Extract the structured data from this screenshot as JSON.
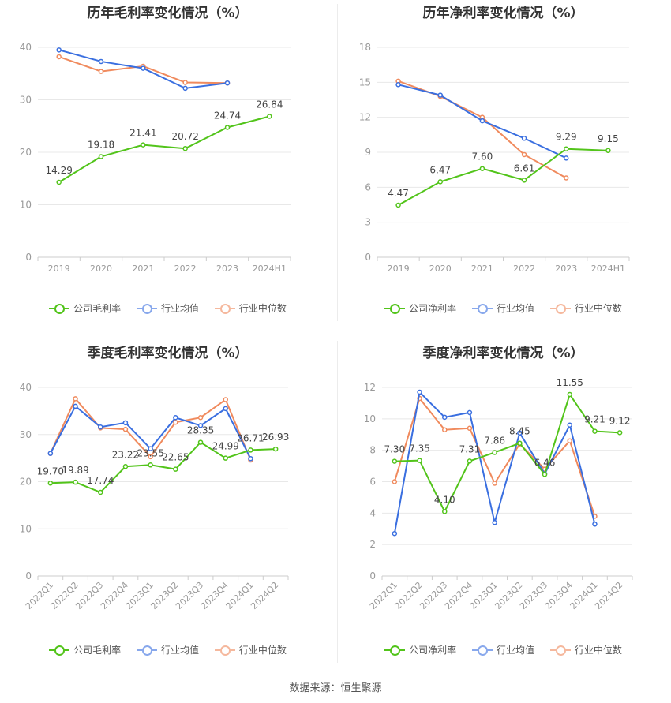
{
  "source_label": "数据来源：恒生聚源",
  "colors": {
    "company": "#52c41a",
    "avg": "#3a6fe0",
    "median": "#f08a5d",
    "grid": "#e8e8e8",
    "axis": "#999999",
    "label": "#555555"
  },
  "chart_data": [
    {
      "type": "line",
      "title": "历年毛利率变化情况（%）",
      "categories": [
        "2019",
        "2020",
        "2021",
        "2022",
        "2023",
        "2024H1"
      ],
      "ylim": [
        0,
        45
      ],
      "yticks": [
        0,
        10,
        20,
        30,
        40
      ],
      "rotate_x": false,
      "series": [
        {
          "name": "公司毛利率",
          "key": "company",
          "values": [
            14.29,
            19.18,
            21.41,
            20.72,
            24.74,
            26.84
          ],
          "labels": [
            "14.29",
            "19.18",
            "21.41",
            "20.72",
            "24.74",
            "26.84"
          ]
        },
        {
          "name": "行业均值",
          "key": "avg",
          "values": [
            39.5,
            37.3,
            36.0,
            32.2,
            33.2,
            null
          ]
        },
        {
          "name": "行业中位数",
          "key": "median",
          "values": [
            38.2,
            35.4,
            36.4,
            33.3,
            33.2,
            null
          ]
        }
      ]
    },
    {
      "type": "line",
      "title": "历年净利率变化情况（%）",
      "categories": [
        "2019",
        "2020",
        "2021",
        "2022",
        "2023",
        "2024H1"
      ],
      "ylim": [
        0,
        19
      ],
      "yticks": [
        0,
        3,
        6,
        9,
        12,
        15,
        18
      ],
      "rotate_x": false,
      "series": [
        {
          "name": "公司净利率",
          "key": "company",
          "values": [
            4.47,
            6.47,
            7.6,
            6.61,
            9.29,
            9.15
          ],
          "labels": [
            "4.47",
            "6.47",
            "7.60",
            "6.61",
            "9.29",
            "9.15"
          ]
        },
        {
          "name": "行业均值",
          "key": "avg",
          "values": [
            14.8,
            13.9,
            11.7,
            10.2,
            8.5,
            null
          ]
        },
        {
          "name": "行业中位数",
          "key": "median",
          "values": [
            15.1,
            13.8,
            12.0,
            8.8,
            6.8,
            null
          ]
        }
      ]
    },
    {
      "type": "line",
      "title": "季度毛利率变化情况（%）",
      "categories": [
        "2022Q1",
        "2022Q2",
        "2022Q3",
        "2022Q4",
        "2023Q1",
        "2023Q2",
        "2023Q3",
        "2023Q4",
        "2024Q1",
        "2024Q2"
      ],
      "ylim": [
        0,
        44
      ],
      "yticks": [
        0,
        10,
        20,
        30,
        40
      ],
      "rotate_x": true,
      "series": [
        {
          "name": "公司毛利率",
          "key": "company",
          "values": [
            19.7,
            19.89,
            17.74,
            23.22,
            23.55,
            22.65,
            28.35,
            24.99,
            26.71,
            26.93
          ],
          "labels": [
            "19.70",
            "19.89",
            "17.74",
            "23.22",
            "23.55",
            "22.65",
            "28.35",
            "24.99",
            "26.71",
            "26.93"
          ]
        },
        {
          "name": "行业均值",
          "key": "avg",
          "values": [
            26.0,
            36.0,
            31.6,
            32.5,
            27.0,
            33.6,
            31.9,
            35.5,
            24.9,
            null
          ]
        },
        {
          "name": "行业中位数",
          "key": "median",
          "values": [
            26.0,
            37.6,
            31.4,
            31.1,
            25.3,
            32.6,
            33.6,
            37.4,
            24.6,
            null
          ]
        }
      ]
    },
    {
      "type": "line",
      "title": "季度净利率变化情况（%）",
      "categories": [
        "2022Q1",
        "2022Q2",
        "2022Q3",
        "2022Q4",
        "2023Q1",
        "2023Q2",
        "2023Q3",
        "2023Q4",
        "2024Q1",
        "2024Q2"
      ],
      "ylim": [
        0,
        13
      ],
      "yticks": [
        0,
        2,
        4,
        6,
        8,
        10,
        12
      ],
      "rotate_x": true,
      "series": [
        {
          "name": "公司净利率",
          "key": "company",
          "values": [
            7.3,
            7.35,
            4.1,
            7.31,
            7.86,
            8.45,
            6.46,
            11.55,
            9.21,
            9.12
          ],
          "labels": [
            "7.30",
            "7.35",
            "4.10",
            "7.31",
            "7.86",
            "8.45",
            "6.46",
            "11.55",
            "9.21",
            "9.12"
          ]
        },
        {
          "name": "行业均值",
          "key": "avg",
          "values": [
            2.7,
            11.7,
            10.1,
            10.4,
            3.4,
            9.1,
            6.5,
            9.6,
            3.3,
            null
          ]
        },
        {
          "name": "行业中位数",
          "key": "median",
          "values": [
            6.0,
            11.3,
            9.3,
            9.4,
            5.9,
            8.4,
            6.8,
            8.6,
            3.8,
            null
          ]
        }
      ]
    }
  ]
}
